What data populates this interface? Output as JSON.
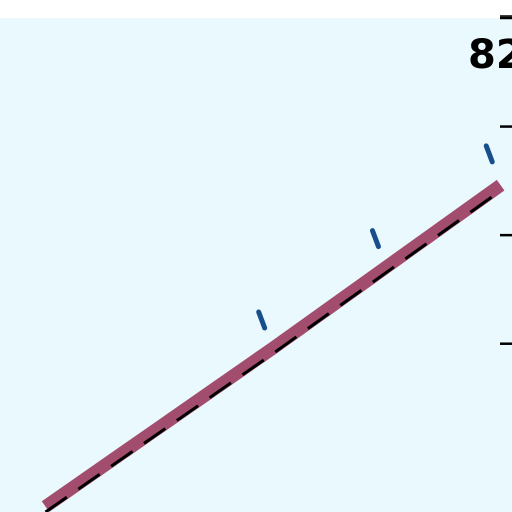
{
  "chart_data": {
    "type": "line",
    "title": "",
    "xlabel": "",
    "ylabel": "",
    "y_tick_label_visible": "82",
    "colors": {
      "plot_background": "#e9f9fd",
      "band": "#a34d6e",
      "trend_line": "#000000",
      "markers": "#174f8c",
      "axis": "#000000"
    },
    "x_range": [
      0.6,
      5.1
    ],
    "y_range": [
      -0.55,
      4.0
    ],
    "band_width": 0.12,
    "series": [
      {
        "style": "band",
        "x": [
          1.0,
          2.0,
          3.0,
          4.0,
          5.0
        ],
        "y": [
          -0.5,
          0.23,
          0.96,
          1.71,
          2.46
        ]
      },
      {
        "style": "dashed",
        "x": [
          1.0,
          2.0,
          3.0,
          4.0,
          5.0
        ],
        "y": [
          -0.55,
          0.18,
          0.91,
          1.66,
          2.41
        ]
      },
      {
        "style": "markers",
        "x": [
          2.9,
          3.9,
          4.9
        ],
        "y": [
          1.2,
          1.95,
          2.73
        ]
      }
    ],
    "y_ticks": [
      1,
      2,
      3,
      4
    ],
    "grid": false,
    "legend": "none"
  }
}
